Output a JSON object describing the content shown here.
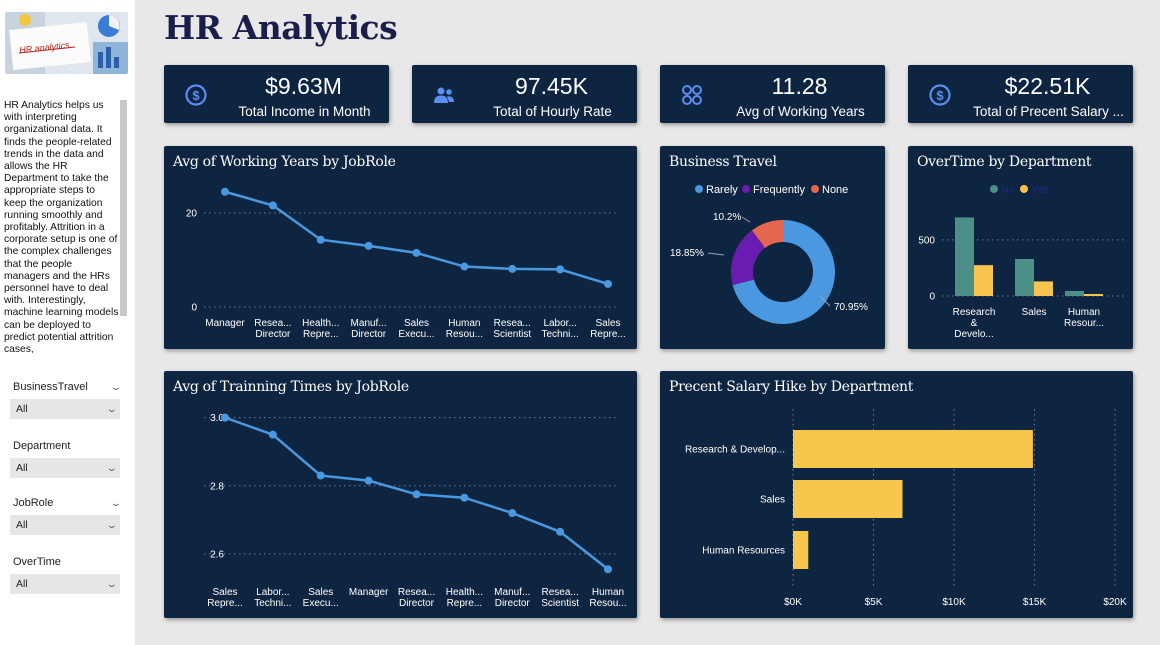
{
  "page": {
    "title": "HR Analytics"
  },
  "sidebar": {
    "image_caption": "HR analytics",
    "description": "HR Analytics helps us with interpreting organizational data. It finds the people-related trends in the data and allows the HR Department to take the appropriate steps to keep the organization running smoothly and profitably. Attrition in a corporate setup is one of the complex challenges that the people managers and the HRs personnel have to deal with. Interestingly, machine learning models can be deployed to predict potential attrition cases,",
    "slicers": [
      {
        "title": "BusinessTravel",
        "value": "All"
      },
      {
        "title": "Department",
        "value": "All"
      },
      {
        "title": "JobRole",
        "value": "All"
      },
      {
        "title": "OverTime",
        "value": "All"
      }
    ]
  },
  "kpis": [
    {
      "value": "$9.63M",
      "label": "Total Income in Month",
      "icon": "dollar-circle-icon"
    },
    {
      "value": "97.45K",
      "label": "Total of Hourly Rate",
      "icon": "people-icon"
    },
    {
      "value": "11.28",
      "label": "Avg of Working Years",
      "icon": "grid-circles-icon"
    },
    {
      "value": "$22.51K",
      "label": "Total of Precent Salary ...",
      "icon": "dollar-circle-icon"
    }
  ],
  "colors": {
    "line": "#4a98e0",
    "rarely": "#4a98e0",
    "frequently": "#6a1bb0",
    "none": "#e5664e",
    "overtime_no": "#4c8f88",
    "overtime_yes": "#f6c44f",
    "bar": "#f7c64c",
    "card": "#0e2541"
  },
  "chart_data": [
    {
      "id": "working_years",
      "type": "line",
      "title": "Avg of Working Years by JobRole",
      "categories": [
        [
          "Manager"
        ],
        [
          "Resea...",
          "Director"
        ],
        [
          "Health...",
          "Repre..."
        ],
        [
          "Manuf...",
          "Director"
        ],
        [
          "Sales",
          "Execu..."
        ],
        [
          "Human",
          "Resou..."
        ],
        [
          "Resea...",
          "Scientist"
        ],
        [
          "Labor...",
          "Techni..."
        ],
        [
          "Sales",
          "Repre..."
        ]
      ],
      "values": [
        24.5,
        21.6,
        14.3,
        13.0,
        11.5,
        8.6,
        8.1,
        8.0,
        4.9
      ],
      "ylim": [
        0,
        27
      ],
      "yticks": [
        0,
        20
      ],
      "grid": true
    },
    {
      "id": "business_travel",
      "type": "pie",
      "title": "Business Travel",
      "legend": [
        "Rarely",
        "Frequently",
        "None"
      ],
      "values": [
        70.95,
        18.85,
        10.2
      ],
      "labels": [
        "70.95%",
        "18.85%",
        "10.2%"
      ]
    },
    {
      "id": "overtime",
      "type": "bar",
      "title": "OverTime by Department",
      "legend": [
        "No",
        "Yes"
      ],
      "categories": [
        [
          "Research",
          "&",
          "Develo..."
        ],
        [
          "Sales"
        ],
        [
          "Human",
          "Resour..."
        ]
      ],
      "series": [
        {
          "name": "No",
          "values": [
            700,
            330,
            45
          ]
        },
        {
          "name": "Yes",
          "values": [
            275,
            130,
            18
          ]
        }
      ],
      "ylim": [
        0,
        820
      ],
      "yticks": [
        0,
        500
      ],
      "grid": true
    },
    {
      "id": "training_times",
      "type": "line",
      "title": "Avg of Trainning Times by JobRole",
      "categories": [
        [
          "Sales",
          "Repre..."
        ],
        [
          "Labor...",
          "Techni..."
        ],
        [
          "Sales",
          "Execu..."
        ],
        [
          "Manager"
        ],
        [
          "Resea...",
          "Director"
        ],
        [
          "Health...",
          "Repre..."
        ],
        [
          "Manuf...",
          "Director"
        ],
        [
          "Resea...",
          "Scientist"
        ],
        [
          "Human",
          "Resou..."
        ]
      ],
      "values": [
        3.0,
        2.95,
        2.83,
        2.815,
        2.775,
        2.765,
        2.72,
        2.665,
        2.555
      ],
      "ylim": [
        2.5,
        3.04
      ],
      "yticks": [
        "3.0",
        "2.8",
        "2.6"
      ],
      "grid": true
    },
    {
      "id": "salary_hike",
      "type": "bar",
      "orientation": "horizontal",
      "title": "Precent Salary Hike by Department",
      "categories": [
        "Research & Develop...",
        "Sales",
        "Human Resources"
      ],
      "values": [
        14900,
        6800,
        950
      ],
      "xlim": [
        0,
        20000
      ],
      "xticks": [
        "$0K",
        "$5K",
        "$10K",
        "$15K",
        "$20K"
      ],
      "grid": true
    }
  ]
}
